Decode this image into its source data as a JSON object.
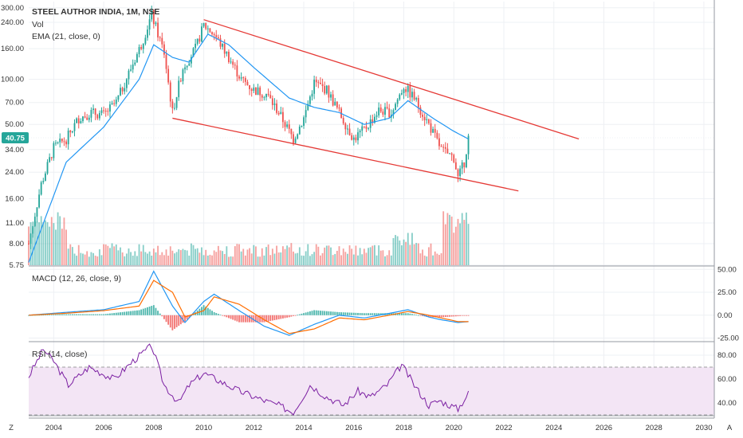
{
  "legend": {
    "main_title": "STEEL AUTHOR INDIA, 1M, NSE",
    "vol_label": "Vol",
    "ema_label": "EMA (21, close, 0)",
    "macd_label": "MACD (12, 26, close, 9)",
    "rsi_label": "RSI (14, close)"
  },
  "price_axis": {
    "ticks": [
      "300.00",
      "240.00",
      "160.00",
      "100.00",
      "70.00",
      "50.00",
      "34.00",
      "24.00",
      "16.00",
      "11.00",
      "8.00",
      "5.75"
    ],
    "current_price_label": "40.75"
  },
  "macd_axis": {
    "ticks": [
      "50.00",
      "25.00",
      "0.00",
      "-25.00"
    ]
  },
  "rsi_axis": {
    "ticks": [
      "80.00",
      "60.00",
      "40.00"
    ]
  },
  "time_axis": {
    "ticks": [
      "2004",
      "2006",
      "2008",
      "2010",
      "2012",
      "2014",
      "2016",
      "2018",
      "2020",
      "2022",
      "2024",
      "2026",
      "2028",
      "2030"
    ]
  },
  "corner_labels": {
    "left": "Z",
    "right": "A"
  },
  "colors": {
    "up": "#26a69a",
    "down": "#ef5350",
    "ema": "#2196f3",
    "channel": "#e53935",
    "macd_line": "#2196f3",
    "signal_line": "#ff6d00",
    "rsi_line": "#7b1fa2",
    "rsi_band": "#f3e5f5",
    "price_label_bg": "#26a69a"
  },
  "chart_data": [
    {
      "type": "candlestick",
      "title": "STEEL AUTHOR INDIA, 1M, NSE",
      "scale": "log",
      "ylim": [
        5.75,
        330
      ],
      "xlim": [
        "2003-01",
        "2030-06"
      ],
      "current_price": 40.75,
      "x": [
        "2003-01",
        "2003-07",
        "2004-01",
        "2004-07",
        "2005-01",
        "2005-07",
        "2006-01",
        "2006-07",
        "2007-01",
        "2007-07",
        "2007-12",
        "2008-06",
        "2008-10",
        "2009-03",
        "2009-09",
        "2010-01",
        "2010-06",
        "2011-01",
        "2011-07",
        "2012-01",
        "2012-07",
        "2013-01",
        "2013-08",
        "2014-01",
        "2014-06",
        "2014-12",
        "2015-06",
        "2016-01",
        "2016-07",
        "2017-01",
        "2017-07",
        "2018-01",
        "2018-06",
        "2019-01",
        "2019-07",
        "2020-01",
        "2020-03",
        "2020-06",
        "2020-08"
      ],
      "close": [
        8,
        20,
        35,
        40,
        55,
        60,
        58,
        70,
        110,
        170,
        270,
        150,
        60,
        120,
        160,
        230,
        200,
        140,
        100,
        85,
        80,
        60,
        40,
        55,
        95,
        85,
        60,
        40,
        48,
        62,
        60,
        90,
        75,
        50,
        34,
        30,
        22,
        28,
        40.75
      ],
      "volume_note": "volume shown as bars in price pane",
      "channel_lines": [
        {
          "x": [
            "2010-01",
            "2025-01"
          ],
          "y": [
            250,
            40
          ]
        },
        {
          "x": [
            "2008-10",
            "2022-08"
          ],
          "y": [
            55,
            18
          ]
        }
      ],
      "ema": {
        "name": "EMA (21, close, 0)",
        "x": [
          "2003-01",
          "2004-07",
          "2006-01",
          "2007-06",
          "2008-01",
          "2008-10",
          "2009-06",
          "2010-03",
          "2011-01",
          "2012-01",
          "2013-06",
          "2014-06",
          "2015-06",
          "2016-06",
          "2017-06",
          "2018-03",
          "2019-03",
          "2020-01",
          "2020-08"
        ],
        "y": [
          6,
          28,
          48,
          100,
          170,
          140,
          130,
          200,
          170,
          120,
          75,
          65,
          60,
          50,
          55,
          72,
          55,
          45,
          40
        ]
      }
    },
    {
      "type": "line",
      "title": "MACD (12, 26, close, 9)",
      "ylim": [
        -28,
        52
      ],
      "x": [
        "2003-01",
        "2004-06",
        "2006-01",
        "2007-06",
        "2008-01",
        "2008-10",
        "2009-04",
        "2010-01",
        "2010-06",
        "2011-06",
        "2012-06",
        "2013-06",
        "2014-06",
        "2015-06",
        "2016-06",
        "2017-06",
        "2018-03",
        "2019-01",
        "2019-07",
        "2020-03",
        "2020-08"
      ],
      "series": [
        {
          "name": "MACD",
          "values": [
            0,
            3,
            6,
            15,
            48,
            10,
            -8,
            15,
            23,
            5,
            -12,
            -22,
            -10,
            0,
            -3,
            2,
            6,
            -2,
            -5,
            -8,
            -7
          ]
        },
        {
          "name": "Signal",
          "values": [
            0,
            2,
            5,
            10,
            38,
            25,
            -2,
            5,
            20,
            12,
            -5,
            -20,
            -15,
            -3,
            -5,
            0,
            4,
            0,
            -3,
            -7,
            -7
          ]
        }
      ]
    },
    {
      "type": "line",
      "title": "RSI (14, close)",
      "ylim": [
        30,
        90
      ],
      "band": [
        30,
        70
      ],
      "x": [
        "2003-01",
        "2003-08",
        "2004-01",
        "2004-08",
        "2005-06",
        "2006-06",
        "2007-03",
        "2007-12",
        "2008-06",
        "2009-01",
        "2009-06",
        "2010-01",
        "2010-09",
        "2011-06",
        "2012-06",
        "2013-01",
        "2013-08",
        "2014-04",
        "2014-12",
        "2015-08",
        "2016-03",
        "2016-09",
        "2017-05",
        "2017-12",
        "2018-06",
        "2019-01",
        "2019-06",
        "2020-03",
        "2020-08"
      ],
      "series": [
        {
          "name": "RSI",
          "values": [
            62,
            85,
            75,
            55,
            70,
            60,
            75,
            88,
            55,
            40,
            55,
            65,
            58,
            50,
            42,
            38,
            32,
            55,
            45,
            38,
            50,
            45,
            55,
            72,
            55,
            38,
            42,
            35,
            48
          ]
        }
      ]
    }
  ]
}
